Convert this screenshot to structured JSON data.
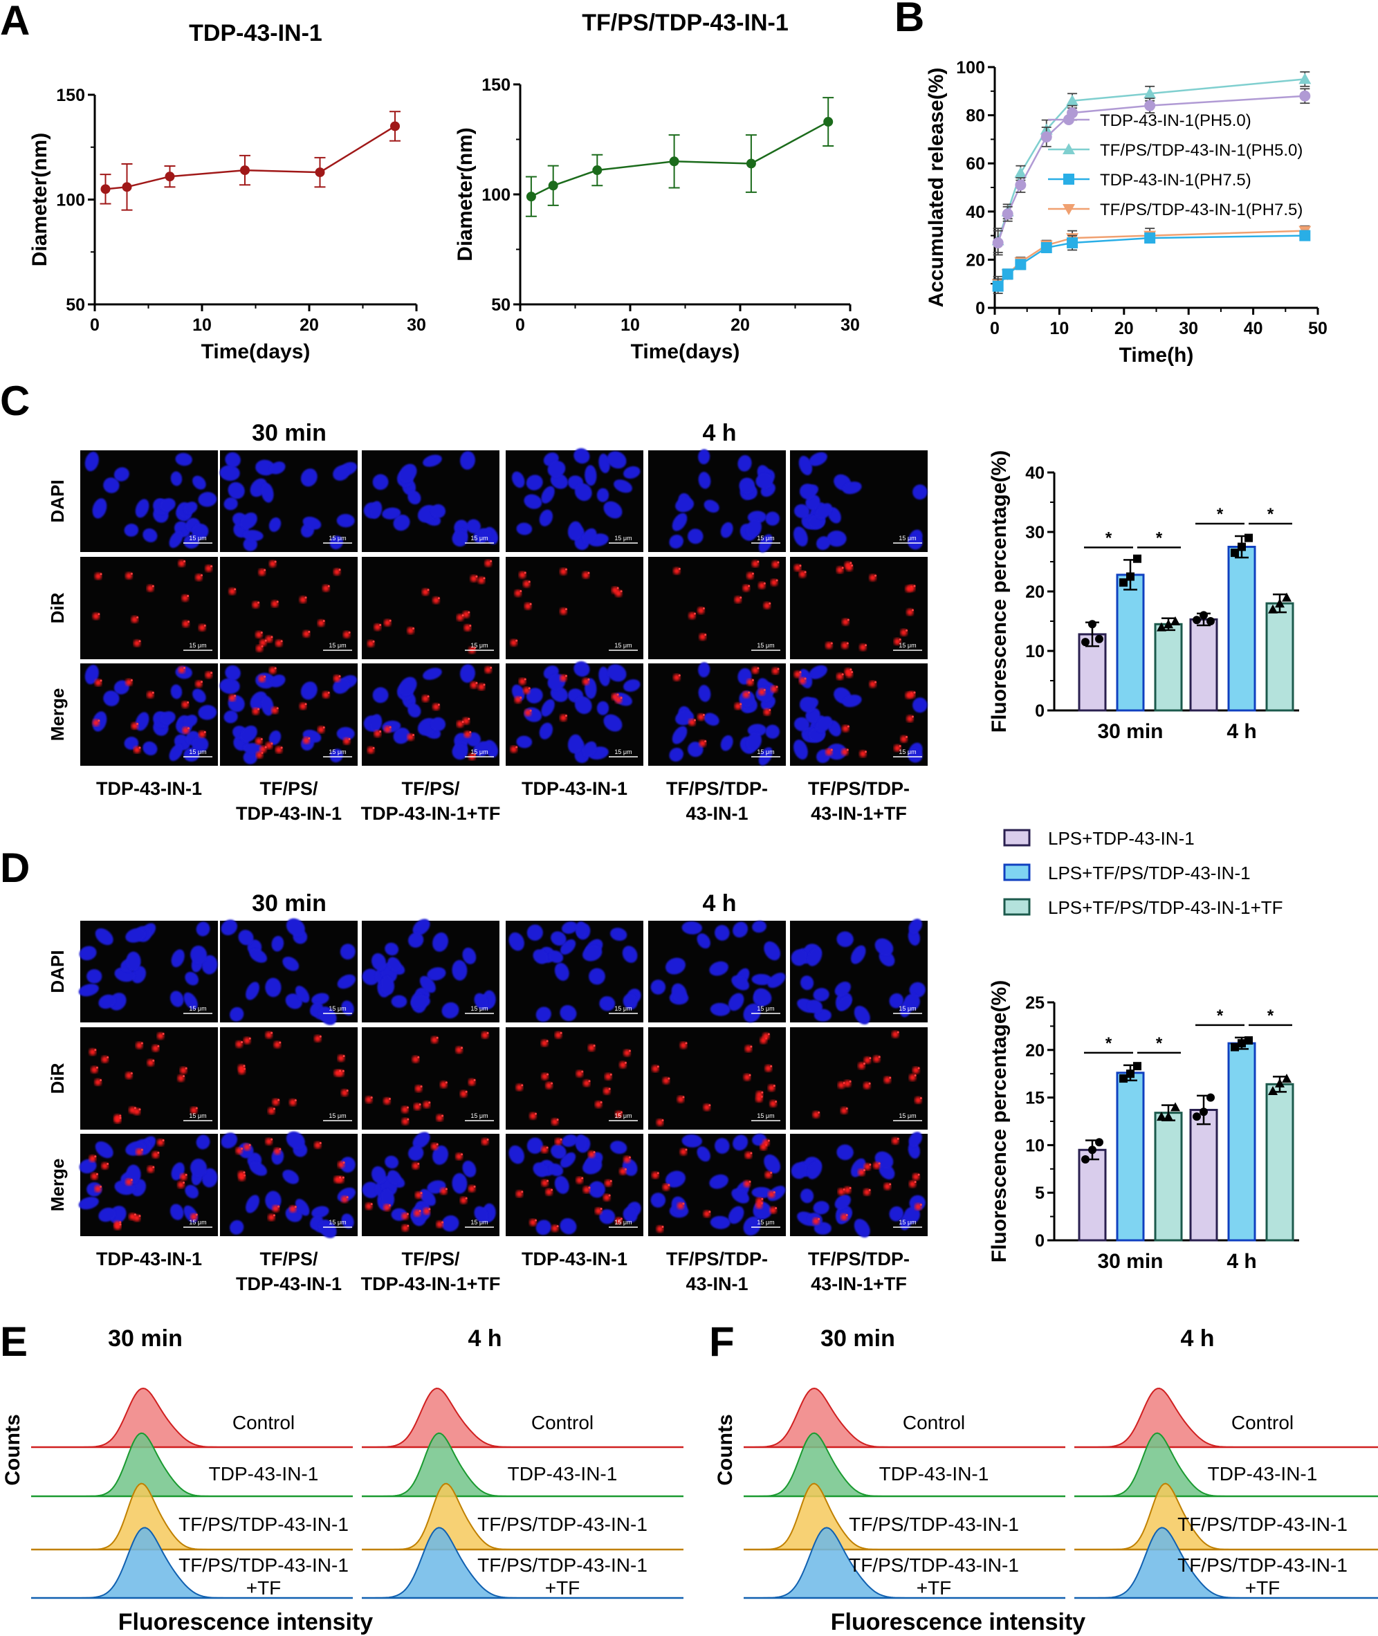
{
  "panel_letters": {
    "A": "A",
    "B": "B",
    "C": "C",
    "D": "D",
    "E": "E",
    "F": "F"
  },
  "colors": {
    "red": "#a01818",
    "green": "#1b6b1b",
    "purple": "#b09ad4",
    "teal": "#7fcfcf",
    "blue": "#29aee6",
    "orange": "#f0a070",
    "bar1": "#d9cdec",
    "bar2": "#7fd4f2",
    "bar3": "#b4e2dc",
    "bar1edge": "#2a2050",
    "bar2edge": "#1040c0",
    "bar3edge": "#1c5a4c",
    "hist_red": "#f08080",
    "hist_green": "#72c48a",
    "hist_yellow": "#f6c95c",
    "hist_blue": "#6cb9e8"
  },
  "chart_data": [
    {
      "id": "A1",
      "type": "line",
      "title": "TDP-43-IN-1",
      "xlabel": "Time(days)",
      "ylabel": "Diameter(nm)",
      "xlim": [
        0,
        30
      ],
      "ylim": [
        50,
        150
      ],
      "xticks": [
        0,
        10,
        20,
        30
      ],
      "yticks": [
        50,
        100,
        150
      ],
      "x": [
        1,
        3,
        7,
        14,
        21,
        28
      ],
      "y": [
        105,
        106,
        111,
        114,
        113,
        135
      ],
      "err": [
        7,
        11,
        5,
        7,
        7,
        7
      ]
    },
    {
      "id": "A2",
      "type": "line",
      "title": "TF/PS/TDP-43-IN-1",
      "xlabel": "Time(days)",
      "ylabel": "Diameter(nm)",
      "xlim": [
        0,
        30
      ],
      "ylim": [
        50,
        150
      ],
      "xticks": [
        0,
        10,
        20,
        30
      ],
      "yticks": [
        50,
        100,
        150
      ],
      "x": [
        1,
        3,
        7,
        14,
        21,
        28
      ],
      "y": [
        99,
        104,
        111,
        115,
        114,
        133
      ],
      "err": [
        9,
        9,
        7,
        12,
        13,
        11
      ]
    },
    {
      "id": "B",
      "type": "line",
      "xlabel": "Time(h)",
      "ylabel": "Accumulated release(%)",
      "xlim": [
        0,
        50
      ],
      "ylim": [
        0,
        100
      ],
      "xticks": [
        0,
        10,
        20,
        30,
        40,
        50
      ],
      "yticks": [
        0,
        20,
        40,
        60,
        80,
        100
      ],
      "x": [
        0.5,
        2,
        4,
        8,
        12,
        24,
        48
      ],
      "series": [
        {
          "name": "TDP-43-IN-1(PH5.0)",
          "y": [
            27,
            39,
            51,
            71,
            81,
            84,
            88
          ],
          "err": [
            5,
            3,
            3,
            4,
            3,
            3,
            3
          ]
        },
        {
          "name": "TF/PS/TDP-43-IN-1(PH5.0)",
          "y": [
            28,
            40,
            56,
            74,
            86,
            89,
            95
          ],
          "err": [
            5,
            3,
            3,
            4,
            3,
            3,
            3
          ]
        },
        {
          "name": "TDP-43-IN-1(PH7.5)",
          "y": [
            9,
            14,
            18,
            25,
            27,
            29,
            30
          ],
          "err": [
            3,
            2,
            2,
            2,
            3,
            2,
            2
          ]
        },
        {
          "name": "TF/PS/TDP-43-IN-1(PH7.5)",
          "y": [
            10,
            14,
            19,
            26,
            29,
            30,
            32
          ],
          "err": [
            3,
            2,
            2,
            2,
            3,
            3,
            2
          ]
        }
      ]
    },
    {
      "id": "C",
      "type": "bar",
      "ylabel": "Fluorescence percentage(%)",
      "ylim": [
        0,
        40
      ],
      "yticks": [
        0,
        10,
        20,
        30,
        40
      ],
      "categories": [
        "30 min",
        "4 h"
      ],
      "series": [
        {
          "name": "LPS+TDP-43-IN-1",
          "values": [
            12.8,
            15.3
          ],
          "err": [
            2,
            1
          ],
          "points": [
            [
              11.5,
              14.5,
              12
            ],
            [
              15.2,
              16,
              15
            ]
          ]
        },
        {
          "name": "LPS+TF/PS/TDP-43-IN-1",
          "values": [
            22.8,
            27.5
          ],
          "err": [
            2.5,
            1.8
          ],
          "points": [
            [
              21.5,
              22.5,
              25.5
            ],
            [
              26.5,
              27.5,
              29
            ]
          ]
        },
        {
          "name": "LPS+TF/PS/TDP-43-IN-1+TF",
          "values": [
            14.5,
            18
          ],
          "err": [
            1,
            1.5
          ],
          "points": [
            [
              14,
              14.5,
              15
            ],
            [
              17,
              18,
              19
            ]
          ]
        }
      ],
      "annotations": [
        "*",
        "*",
        "*",
        "*"
      ]
    },
    {
      "id": "D",
      "type": "bar",
      "ylabel": "Fluorescence percentage(%)",
      "ylim": [
        0,
        25
      ],
      "yticks": [
        0,
        5,
        10,
        15,
        20,
        25
      ],
      "categories": [
        "30 min",
        "4 h"
      ],
      "series": [
        {
          "name": "LPS+TDP-43-IN-1",
          "values": [
            9.5,
            13.7
          ],
          "err": [
            1,
            1.5
          ],
          "points": [
            [
              8.5,
              9.5,
              10.3
            ],
            [
              13,
              13.5,
              15
            ]
          ]
        },
        {
          "name": "LPS+TF/PS/TDP-43-IN-1",
          "values": [
            17.6,
            20.7
          ],
          "err": [
            0.8,
            0.6
          ],
          "points": [
            [
              17,
              17.5,
              18.3
            ],
            [
              20.3,
              20.7,
              21
            ]
          ]
        },
        {
          "name": "LPS+TF/PS/TDP-43-IN-1+TF",
          "values": [
            13.4,
            16.4
          ],
          "err": [
            0.8,
            0.8
          ],
          "points": [
            [
              13,
              13,
              14
            ],
            [
              15.7,
              16.5,
              17
            ]
          ]
        }
      ],
      "annotations": [
        "*",
        "*",
        "*",
        "*"
      ]
    }
  ],
  "micro": {
    "time_labels": [
      "30 min",
      "4 h"
    ],
    "row_labels": [
      "DAPI",
      "DiR",
      "Merge"
    ],
    "scale_bar": "15 μm",
    "captions": [
      [
        "TDP-43-IN-1"
      ],
      [
        "TF/PS/",
        "TDP-43-IN-1"
      ],
      [
        "TF/PS/",
        "TDP-43-IN-1+TF"
      ],
      [
        "TDP-43-IN-1"
      ],
      [
        "TF/PS/TDP-",
        "43-IN-1"
      ],
      [
        "TF/PS/TDP-",
        "43-IN-1+TF"
      ]
    ]
  },
  "legend_bars": [
    "LPS+TDP-43-IN-1",
    "LPS+TF/PS/TDP-43-IN-1",
    "LPS+TF/PS/TDP-43-IN-1+TF"
  ],
  "flow": {
    "time_labels": [
      "30 min",
      "4 h"
    ],
    "ylabel": "Counts",
    "xlabel": "Fluorescence intensity",
    "curves": [
      "Control",
      "TDP-43-IN-1",
      "TF/PS/TDP-43-IN-1",
      "TF/PS/TDP-43-IN-1",
      "+TF"
    ]
  }
}
